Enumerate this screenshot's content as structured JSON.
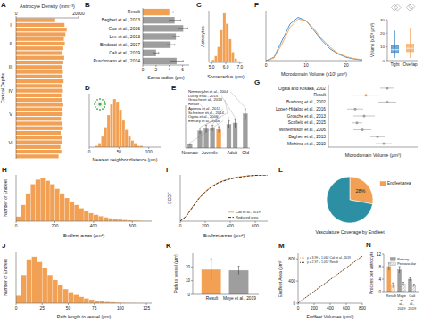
{
  "chart_data": [
    {
      "label": "A",
      "type": "bar",
      "orientation": "horizontal",
      "title": "Astrocyte Density (mm⁻³)",
      "y_label": "Cortical Depths",
      "categories": [
        null,
        null,
        null,
        null,
        null,
        null,
        null,
        null,
        null,
        null,
        null,
        null,
        null,
        null,
        null,
        null,
        null,
        null,
        null,
        null,
        null,
        null,
        null,
        null,
        null,
        null,
        null,
        null,
        null,
        null
      ],
      "values": [
        12500,
        15500,
        16200,
        15800,
        15300,
        15600,
        15100,
        14800,
        15400,
        15100,
        14600,
        15000,
        14900,
        15200,
        14700,
        15000,
        14500,
        14800,
        15100,
        14600,
        14900,
        14400,
        14700,
        15000,
        14300,
        14600,
        14800,
        14200,
        14500,
        13600
      ],
      "color": "#f2a154",
      "xlim": [
        0,
        20000
      ],
      "xticks": [
        0,
        20000
      ],
      "layers": [
        {
          "label": "I",
          "at": 1
        },
        {
          "label": "II",
          "at": 5
        },
        {
          "label": "III",
          "at": 10
        },
        {
          "label": "IV",
          "at": 15
        },
        {
          "label": "V",
          "at": 20
        },
        {
          "label": "VI",
          "at": 26
        }
      ]
    },
    {
      "label": "B",
      "type": "bar",
      "orientation": "horizontal",
      "x_label": "Soma radius (μm)",
      "categories": [
        "Result",
        "Bagheri et al., 2013",
        "Guo et al., 2016",
        "Lee et al., 2013",
        "Bindocci et al., 2017",
        "Cali et al., 2019",
        "Puschmann et al., 2014"
      ],
      "values": [
        4.0,
        4.8,
        6.1,
        5.0,
        4.2,
        2.0,
        5.1
      ],
      "errors": [
        0.6,
        0.9,
        0.7,
        0.5,
        0.6,
        0.4,
        1.0
      ],
      "colors": [
        "#f2a154",
        "#9e9e9e",
        "#9e9e9e",
        "#9e9e9e",
        "#9e9e9e",
        "#9e9e9e",
        "#9e9e9e"
      ],
      "xlim": [
        0,
        7
      ],
      "xticks": [
        0,
        2,
        4,
        6
      ]
    },
    {
      "label": "C",
      "type": "histogram",
      "y_label": "Astrocytes",
      "x_label": "Soma radius (μm)",
      "bins": [
        5.0,
        5.2,
        5.4,
        5.6,
        5.8,
        6.0,
        6.2,
        6.4,
        6.6,
        6.8,
        7.0
      ],
      "counts": [
        2,
        5,
        12,
        25,
        38,
        30,
        18,
        8,
        3,
        1
      ],
      "color": "#f2a154",
      "xlim": [
        4.8,
        7.2
      ],
      "ylim": [
        0,
        40
      ],
      "xticks": [
        {
          "value": 5,
          "label": "5.0"
        },
        {
          "value": 6,
          "label": "6.0"
        },
        {
          "value": 7,
          "label": "7.0"
        }
      ],
      "tick_labels": "x"
    },
    {
      "label": "D",
      "type": "histogram",
      "x_label": "Nearest neighbor distance (μm)",
      "bins": [
        10,
        15,
        20,
        25,
        30,
        35,
        40,
        45,
        50,
        55,
        60,
        65,
        70,
        75,
        80,
        85,
        90
      ],
      "counts": [
        1,
        3,
        8,
        15,
        24,
        32,
        36,
        34,
        28,
        20,
        13,
        8,
        5,
        3,
        1,
        1
      ],
      "color": "#f2a154",
      "xlim": [
        0,
        120
      ],
      "ylim": [
        0,
        40
      ],
      "xticks": [
        0,
        50,
        100
      ],
      "tick_labels": "x"
    },
    {
      "label": "E",
      "type": "bar",
      "categories": [
        "Emsley et al., 2006",
        "Ogata et al., 2006",
        "Schreiner et al., 2014",
        "Apoeva et al., 2013",
        "Result",
        "Grosche et al., 2013",
        "Luchy et al., 2015",
        "Nimmerjahn et al., 2004"
      ],
      "values": [
        5,
        24,
        27,
        28,
        26,
        33,
        35,
        48
      ],
      "errors": [
        1,
        4,
        5,
        4,
        4,
        5,
        6,
        7
      ],
      "colors": [
        "#9e9e9e",
        "#9e9e9e",
        "#9e9e9e",
        "#9e9e9e",
        "#f2a154",
        "#9e9e9e",
        "#9e9e9e",
        "#9e9e9e"
      ],
      "ylim": [
        0,
        60
      ],
      "tick_labels": "x",
      "groups": [
        {
          "label": "Neonate",
          "first": 0,
          "last": 0
        },
        {
          "label": "Juvenile",
          "first": 1,
          "last": 4
        },
        {
          "label": "Adult",
          "first": 5,
          "last": 6
        },
        {
          "label": "Old",
          "first": 7,
          "last": 7
        }
      ]
    },
    {
      "label": "F",
      "type": "line",
      "x_label": "Microdomain Volume (x10³ μm³)",
      "x": [
        0,
        2,
        4,
        6,
        8,
        10,
        12,
        14,
        16,
        18,
        20,
        22,
        24
      ],
      "series": [
        {
          "name": "Tight",
          "color": "#3b84c4",
          "values": [
            0,
            0.01,
            0.06,
            0.11,
            0.13,
            0.12,
            0.09,
            0.06,
            0.035,
            0.02,
            0.01,
            0.005,
            0.002
          ]
        },
        {
          "name": "Overlap",
          "color": "#f2a154",
          "values": [
            0,
            0.008,
            0.05,
            0.1,
            0.125,
            0.12,
            0.095,
            0.065,
            0.04,
            0.022,
            0.012,
            0.006,
            0.003
          ]
        }
      ],
      "xlim": [
        0,
        24
      ],
      "ylim": [
        0,
        0.15
      ],
      "xticks": [
        0,
        10,
        20
      ],
      "tick_labels": "x",
      "inset": {
        "y_label": "Volume (x10³ μm³)",
        "ylim": [
          0,
          30
        ],
        "yticks": [
          0,
          10,
          20,
          30
        ],
        "medians": [
          8,
          9
        ],
        "q1": [
          6,
          6.5
        ],
        "q3": [
          11,
          12
        ],
        "min": [
          2,
          2
        ],
        "max": [
          22,
          24
        ]
      }
    },
    {
      "label": "G",
      "type": "dot",
      "x_label": "Microdomain Volume (μm³)",
      "categories": [
        "Ogata and Kosaka, 2002",
        "Result",
        "Bushong et al., 2002",
        "Lopez-Hidalgo et al., 2016",
        "Grosche et al., 2013",
        "Scofield et al., 2015",
        "Wilhelmsson et al., 2006",
        "Bagheri et al., 2013",
        "Mishima et al., 2010"
      ],
      "values": [
        66000,
        42000,
        66000,
        30000,
        40000,
        32000,
        38000,
        55000,
        62000
      ],
      "errors": [
        8000,
        15000,
        10000,
        9000,
        12000,
        6000,
        10000,
        8000,
        9000
      ],
      "colors": [
        "#9e9e9e",
        "#f2a154",
        "#9e9e9e",
        "#9e9e9e",
        "#9e9e9e",
        "#9e9e9e",
        "#9e9e9e",
        "#9e9e9e",
        "#9e9e9e"
      ],
      "xlim": [
        0,
        100000
      ],
      "tick_labels": false
    },
    {
      "label": "H",
      "type": "histogram",
      "y_label": "Number of Endfeet",
      "x_label": "Endfeet areas (μm²)",
      "bins": [
        0,
        25,
        50,
        75,
        100,
        125,
        150,
        175,
        200,
        225,
        250,
        275,
        300,
        325,
        350,
        375,
        400,
        425,
        450,
        475,
        500,
        525,
        550,
        575,
        600,
        625,
        650,
        675,
        700
      ],
      "counts": [
        200,
        700,
        1200,
        1600,
        1800,
        1850,
        1750,
        1600,
        1400,
        1200,
        1000,
        850,
        700,
        560,
        450,
        350,
        280,
        220,
        170,
        130,
        100,
        75,
        55,
        40,
        30,
        20,
        12,
        8
      ],
      "color": "#f2a154",
      "xlim": [
        0,
        700
      ],
      "ylim": [
        0,
        2000
      ],
      "xticks": [
        0,
        200,
        400,
        600
      ],
      "tick_labels": "x"
    },
    {
      "label": "I",
      "type": "line",
      "y_label": "ECDF",
      "x_label": "Endfeet areas (μm²)",
      "x": [
        0,
        50,
        100,
        150,
        200,
        250,
        300,
        350,
        400,
        450,
        500,
        550,
        600,
        650,
        700
      ],
      "series": [
        {
          "name": "Cali et al., 2019",
          "color": "#f2a154",
          "values": [
            0,
            0.12,
            0.32,
            0.5,
            0.64,
            0.75,
            0.83,
            0.88,
            0.92,
            0.95,
            0.97,
            0.98,
            0.99,
            0.995,
            1
          ]
        },
        {
          "name": "Reduced area",
          "color": "#222222",
          "line_style": "dashed",
          "values": [
            0,
            0.11,
            0.31,
            0.49,
            0.63,
            0.74,
            0.82,
            0.87,
            0.91,
            0.94,
            0.96,
            0.98,
            0.99,
            0.995,
            1
          ]
        }
      ],
      "xlim": [
        0,
        700
      ],
      "ylim": [
        0,
        1
      ],
      "xticks": [
        0,
        200,
        400,
        600
      ],
      "tick_labels": "x",
      "legend": "lower right"
    },
    {
      "label": "J",
      "type": "histogram",
      "y_label": "Number of Endfeet",
      "x_label": "Path length to vessel (μm)",
      "bins": [
        0,
        5,
        10,
        15,
        20,
        25,
        30,
        35,
        40,
        45,
        50,
        55,
        60,
        65,
        70,
        75,
        80,
        85,
        90,
        95,
        100,
        105,
        110,
        115,
        120,
        125,
        130
      ],
      "counts": [
        300,
        1100,
        1700,
        1800,
        1600,
        1350,
        1100,
        900,
        700,
        550,
        430,
        330,
        250,
        190,
        140,
        100,
        75,
        55,
        40,
        30,
        20,
        15,
        10,
        7,
        5,
        3
      ],
      "color": "#f2a154",
      "xlim": [
        0,
        130
      ],
      "ylim": [
        0,
        2000
      ],
      "xticks": [
        0,
        25,
        50,
        75,
        100,
        125
      ],
      "tick_labels": "x"
    },
    {
      "label": "K",
      "type": "bar",
      "y_label": "Path to vessel (μm)",
      "categories": [
        "Result",
        "Moye et al., 2019"
      ],
      "values": [
        18,
        17.5
      ],
      "errors": [
        8,
        3
      ],
      "colors": [
        "#f2a154",
        "#9e9e9e"
      ],
      "ylim": [
        0,
        30
      ],
      "yticks": [
        0,
        10,
        20
      ]
    },
    {
      "label": "L",
      "type": "pie",
      "title": "Vasculature Coverage by Endfeet",
      "categories": [
        "Endfeet area",
        null
      ],
      "values": [
        28,
        72
      ],
      "colors": [
        "#f2a154",
        "#2c8fa3"
      ],
      "data_labels": true,
      "value_labels": [
        "28%",
        null
      ],
      "legend": "upper right"
    },
    {
      "label": "M",
      "type": "line",
      "x_label": "Endfeet Volumes (μm³)",
      "y_label": "Endfeet Area (μm²)",
      "x": [
        0,
        200,
        400,
        600,
        800
      ],
      "series": [
        {
          "name": "y = 3.99 + 1.062 Cali et al., 2019",
          "color": "#f2a154",
          "line_style": "dotted",
          "values": [
            4,
            216,
            429,
            641,
            854
          ]
        },
        {
          "name": "y = 2.97 + 1.057 Result",
          "color": "#222222",
          "line_style": "dotted",
          "values": [
            3,
            214,
            426,
            637,
            849
          ]
        }
      ],
      "xlim": [
        0,
        800
      ],
      "ylim": [
        0,
        900
      ],
      "xticks": [
        0,
        200,
        400,
        600,
        800
      ],
      "yticks": [
        0,
        400,
        800
      ],
      "legend": "upper left"
    },
    {
      "label": "N",
      "type": "bar",
      "y_label": "Process per astrocyte",
      "categories": [
        "Result",
        "Moye et al., 2019",
        "Cali et al., 2019"
      ],
      "series": [
        {
          "name": "Primary",
          "colors": [
            "#f2a154",
            "#9e9e9e",
            "#9e9e9e"
          ],
          "values": [
            8,
            7,
            4
          ],
          "errors": [
            1.2,
            1,
            0.5
          ]
        },
        {
          "name": "Perivascular",
          "colors": [
            "#f2a154",
            "#9e9e9e",
            "#9e9e9e"
          ],
          "line_style": "hatched",
          "values": [
            2,
            2.5,
            2
          ],
          "errors": [
            0.8,
            0.5,
            0.4
          ]
        }
      ],
      "ylim": [
        0,
        12
      ],
      "yticks": [
        0,
        4,
        8,
        12
      ],
      "legend": "upper right"
    }
  ]
}
